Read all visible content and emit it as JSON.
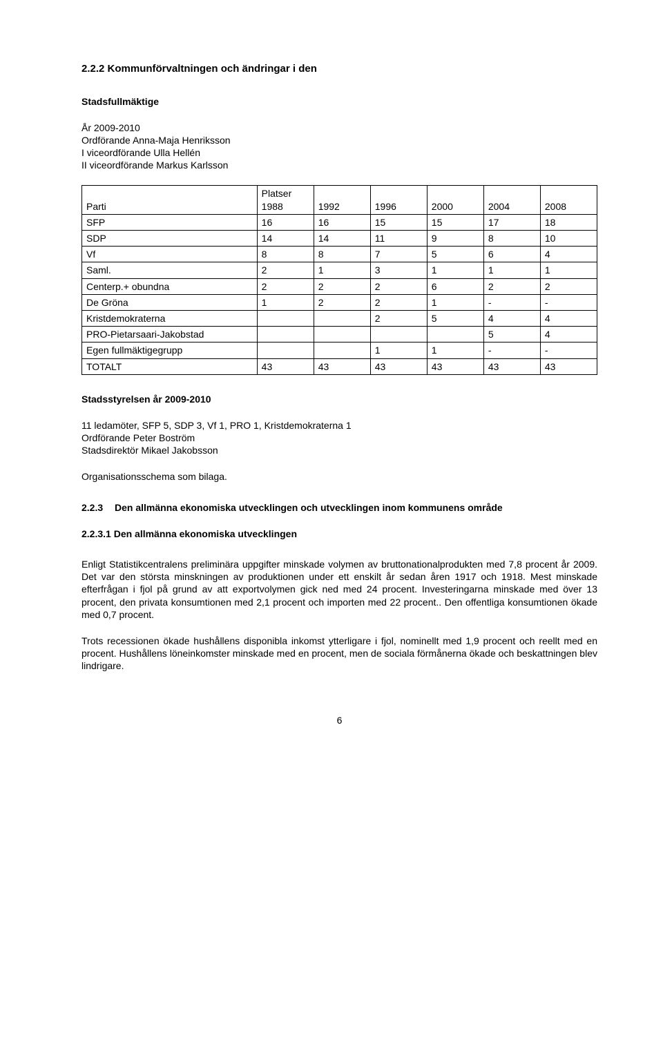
{
  "h_222": "2.2.2 Kommunförvaltningen och ändringar i den",
  "stadsfull": "Stadsfullmäktige",
  "year_line": "År 2009-2010",
  "line_ordf": "Ordförande Anna-Maja Henriksson",
  "line_vice1": "I viceordförande Ulla Hellén",
  "line_vice2": "II viceordförande Markus Karlsson",
  "table": {
    "col0_label": "Parti",
    "col0_sublabel": "",
    "platser_label": "Platser",
    "year_cols": [
      "1988",
      "1992",
      "1996",
      "2000",
      "2004",
      "2008"
    ],
    "rows": [
      {
        "label": "SFP",
        "vals": [
          "16",
          "16",
          "15",
          "15",
          "17",
          "18"
        ]
      },
      {
        "label": "SDP",
        "vals": [
          "14",
          "14",
          "11",
          "9",
          "8",
          "10"
        ]
      },
      {
        "label": "Vf",
        "vals": [
          "8",
          "8",
          "7",
          "5",
          "6",
          "4"
        ]
      },
      {
        "label": "Saml.",
        "vals": [
          "2",
          "1",
          "3",
          "1",
          "1",
          "1"
        ]
      },
      {
        "label": "Centerp.+ obundna",
        "vals": [
          "2",
          "2",
          "2",
          "6",
          "2",
          "2"
        ]
      },
      {
        "label": "De Gröna",
        "vals": [
          "1",
          "2",
          "2",
          "1",
          "-",
          "-"
        ]
      },
      {
        "label": "Kristdemokraterna",
        "vals": [
          "",
          "",
          "2",
          "5",
          "4",
          "4"
        ]
      },
      {
        "label": "PRO-Pietarsaari-Jakobstad",
        "vals": [
          "",
          "",
          "",
          "",
          "5",
          "4"
        ]
      },
      {
        "label": "Egen fullmäktigegrupp",
        "vals": [
          "",
          "",
          "1",
          "1",
          "-",
          "-"
        ]
      },
      {
        "label": "TOTALT",
        "vals": [
          "43",
          "43",
          "43",
          "43",
          "43",
          "43"
        ]
      }
    ]
  },
  "stadsstyrelsen": "Stadsstyrelsen år 2009-2010",
  "ledamoter": "11 ledamöter, SFP 5, SDP 3, Vf 1, PRO 1, Kristdemokraterna 1",
  "ordf_peter": "Ordförande Peter Boström",
  "stadsdir": "Stadsdirektör Mikael Jakobsson",
  "orgschema": "Organisationsschema som bilaga.",
  "h_223_num": "2.2.3",
  "h_223_txt": "Den allmänna ekonomiska utvecklingen och utvecklingen inom kommunens område",
  "h_2231": "2.2.3.1 Den allmänna ekonomiska utvecklingen",
  "para1": "Enligt Statistikcentralens preliminära uppgifter minskade volymen av brutto­nationalprodukten med 7,8 procent år 2009. Det var den största minskningen av produktionen under ett enskilt år sedan åren 1917 och 1918. Mest minskade efterfrågan i fjol på grund av att exportvolymen gick ned med 24 procent. Investeringarna minskade med över 13 procent, den privata konsumtionen med 2,1 procent och importen med 22 procent.. Den offentliga konsumtionen ökade med 0,7 procent.",
  "para2": "Trots recessionen ökade hushållens disponibla inkomst ytterligare i fjol, nominellt med 1,9 procent och reellt med en procent. Hushållens löneinkomster minskade med en procent, men de sociala förmånerna ökade och beskattningen blev lindrigare.",
  "pagenum": "6"
}
